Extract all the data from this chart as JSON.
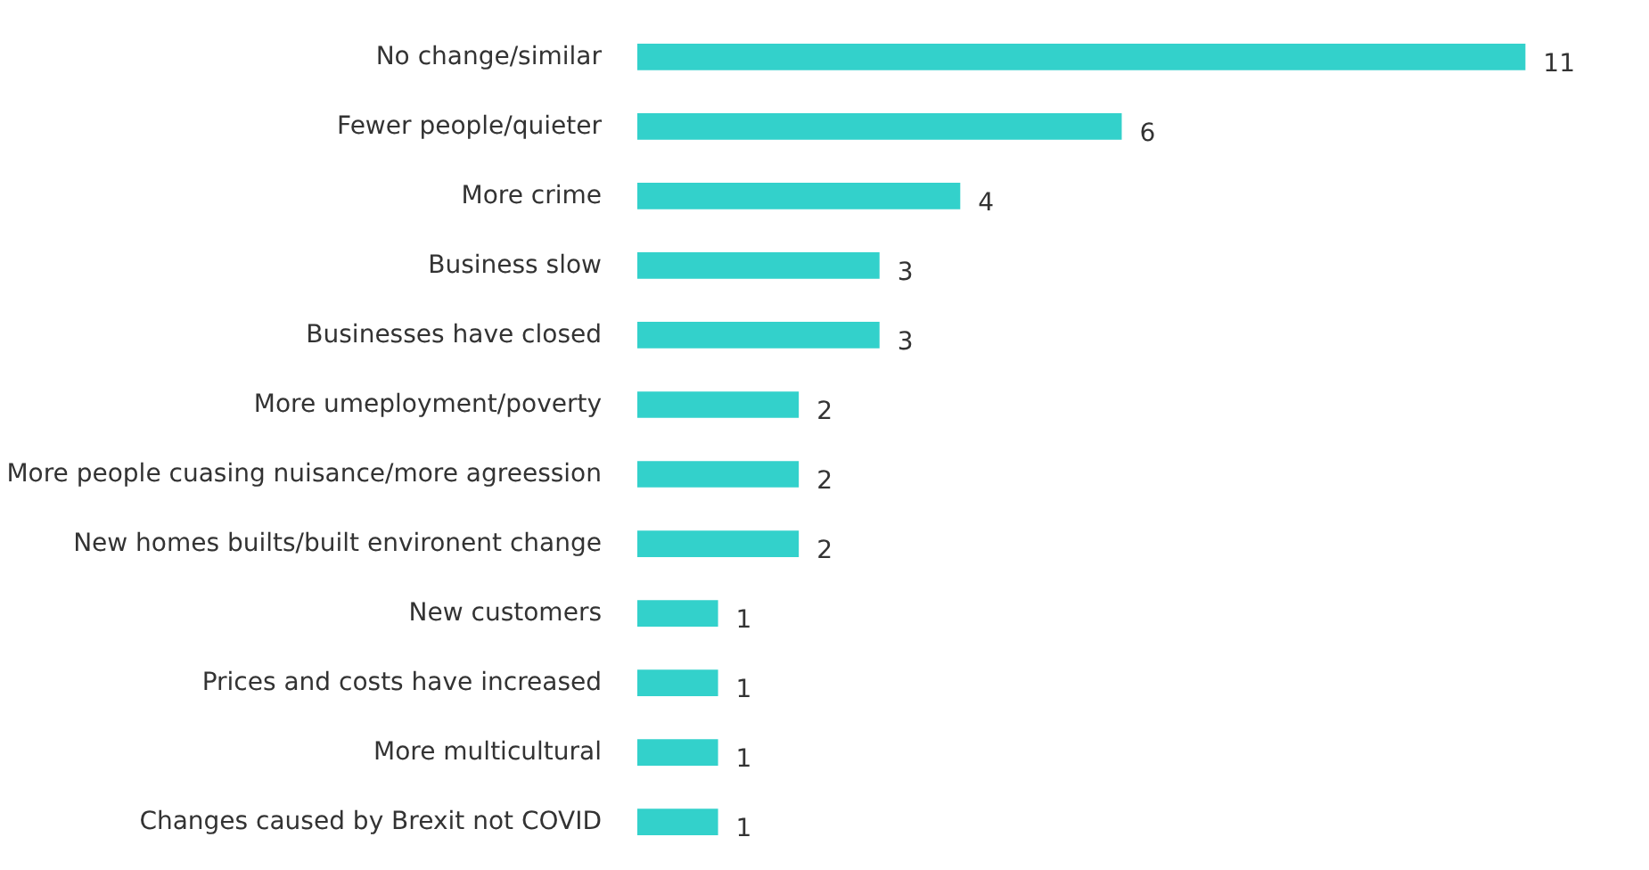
{
  "chart_data": {
    "type": "bar",
    "orientation": "horizontal",
    "categories": [
      "No change/similar",
      "Fewer people/quieter",
      "More crime",
      "Business slow",
      "Businesses have closed",
      "More umeployment/poverty",
      "More people cuasing nuisance/more agreession",
      "New homes builts/built environent change",
      "New customers",
      "Prices and costs have increased",
      "More multicultural",
      "Changes caused by Brexit not COVID"
    ],
    "values": [
      11,
      6,
      4,
      3,
      3,
      2,
      2,
      2,
      1,
      1,
      1,
      1
    ],
    "color": "#33d1cb",
    "data_labels": true
  }
}
